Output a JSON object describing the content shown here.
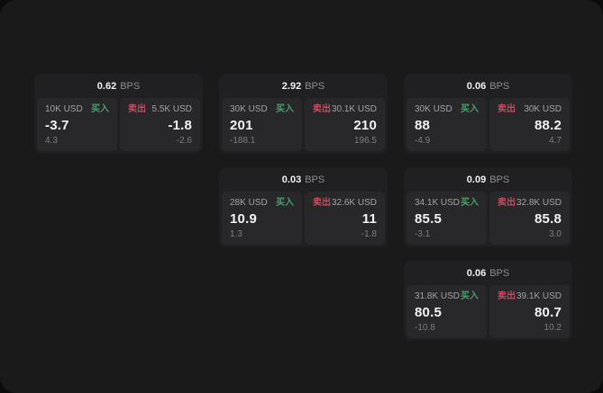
{
  "labels": {
    "buy": "买入",
    "sell": "卖出",
    "bps_unit": "BPS"
  },
  "colors": {
    "outer_bg": "#0b0b0c",
    "screen_bg": "#1a1a1b",
    "card_bg": "#202022",
    "tile_bg": "#28282a",
    "buy_green": "#48a06a",
    "sell_red": "#c94a5e"
  },
  "cards": [
    {
      "bps": "0.62",
      "buy": {
        "notional": "10K USD",
        "price": "-3.7",
        "delta": "4.3"
      },
      "sell": {
        "notional": "5.5K USD",
        "price": "-1.8",
        "delta": "-2.6"
      }
    },
    {
      "bps": "2.92",
      "buy": {
        "notional": "30K USD",
        "price": "201",
        "delta": "-188.1"
      },
      "sell": {
        "notional": "30.1K USD",
        "price": "210",
        "delta": "196.5"
      }
    },
    {
      "bps": "0.06",
      "buy": {
        "notional": "30K USD",
        "price": "88",
        "delta": "-4.9"
      },
      "sell": {
        "notional": "30K USD",
        "price": "88.2",
        "delta": "4.7"
      }
    },
    {
      "bps": "0.03",
      "buy": {
        "notional": "28K USD",
        "price": "10.9",
        "delta": "1.3"
      },
      "sell": {
        "notional": "32.6K USD",
        "price": "11",
        "delta": "-1.8"
      }
    },
    {
      "bps": "0.09",
      "buy": {
        "notional": "34.1K USD",
        "price": "85.5",
        "delta": "-3.1"
      },
      "sell": {
        "notional": "32.8K USD",
        "price": "85.8",
        "delta": "3.0"
      }
    },
    {
      "bps": "0.06",
      "buy": {
        "notional": "31.8K USD",
        "price": "80.5",
        "delta": "-10.8"
      },
      "sell": {
        "notional": "39.1K USD",
        "price": "80.7",
        "delta": "10.2"
      }
    }
  ]
}
